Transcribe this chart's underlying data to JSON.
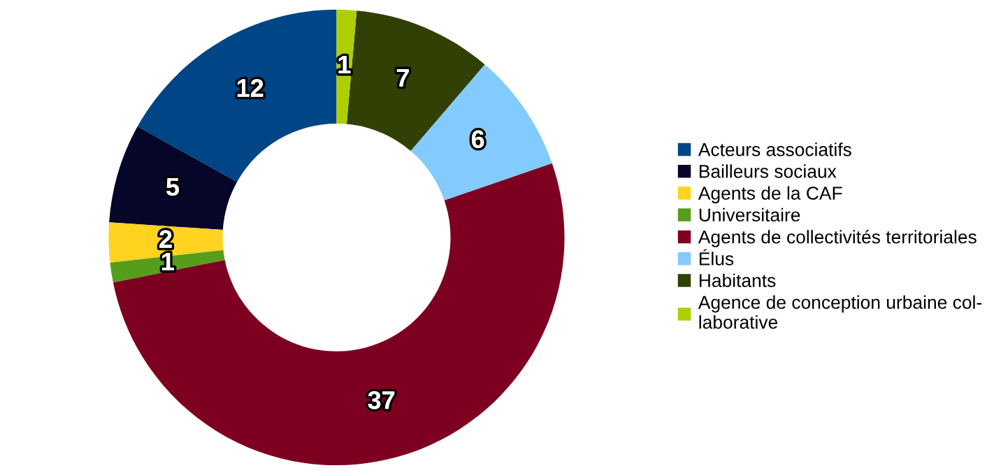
{
  "chart_data": {
    "type": "donut",
    "categories": [
      "Acteurs associatifs",
      "Bailleurs sociaux",
      "Agents de la CAF",
      "Universitaire",
      "Agents de collectivités territoriales",
      "Élus",
      "Habitants",
      "Agence de conception urbaine col-\nlaborative"
    ],
    "values": [
      12,
      5,
      2,
      1,
      37,
      6,
      7,
      1
    ],
    "colors": [
      "#004586",
      "#06062a",
      "#ffd320",
      "#579d1c",
      "#7e0021",
      "#83caff",
      "#314004",
      "#aecf00"
    ],
    "data_labels": true,
    "legend": "right"
  }
}
